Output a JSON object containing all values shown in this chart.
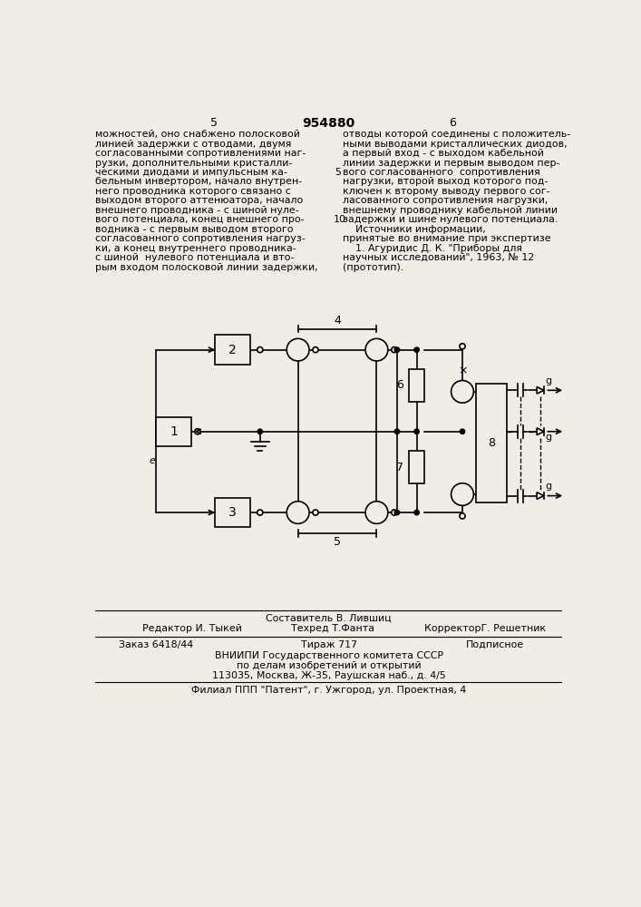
{
  "patent_number": "954880",
  "page_left": "5",
  "page_right": "6",
  "text_left": [
    "можностей, оно снабжено полосковой",
    "линией задержки с отводами, двумя",
    "согласованными сопротивлениями наг-",
    "рузки, дополнительными кристалли-",
    "ческими диодами и импульсным ка-",
    "бельным инвертором, начало внутрен-",
    "него проводника которого связано с",
    "выходом второго аттенюатора, начало",
    "внешнего проводника - с шиной нуле-",
    "вого потенциала, конец внешнего про-",
    "водника - с первым выводом второго",
    "согласованного сопротивления нагруз-",
    "ки, а конец внутреннего проводника-",
    "с шиной  нулевого потенциала и вто-",
    "рым входом полосковой линии задержки,"
  ],
  "text_right": [
    "отводы которой соединены с положитель-",
    "ными выводами кристаллических диодов,",
    "а первый вход - с выходом кабельной",
    "линии задержки и первым выводом пер-",
    "вого согласованного  сопротивления",
    "нагрузки, второй выход которого под-",
    "ключен к второму выводу первого сог-",
    "ласованного сопротивления нагрузки,",
    "внешнему проводнику кабельной линии",
    "задержки и шине нулевого потенциала.",
    "    Источники информации,",
    "принятые во внимание при экспертизе",
    "    1. Агуридис Д. К. \"Приборы для",
    "научных исследований\", 1963, № 12",
    "(прототип)."
  ],
  "footer_compiler": "Составитель В. Лившиц",
  "footer_editor": "Редактор И. Тыкей",
  "footer_techred": "Техред Т.Фанта",
  "footer_corrector": "КорректорГ. Решетник",
  "footer_order": "Заказ 6418/44",
  "footer_tirazh": "Тираж 717",
  "footer_podpisnoe": "Подписное",
  "footer_org1": "ВНИИПИ Государственного комитета СССР",
  "footer_org2": "по делам изобретений и открытий",
  "footer_addr": "113035, Москва, Ж-35, Раушская наб., д. 4/5",
  "footer_branch": "Филиал ППП \"Патент\", г. Ужгород, ул. Проектная, 4",
  "bg_color": "#f0ede6"
}
